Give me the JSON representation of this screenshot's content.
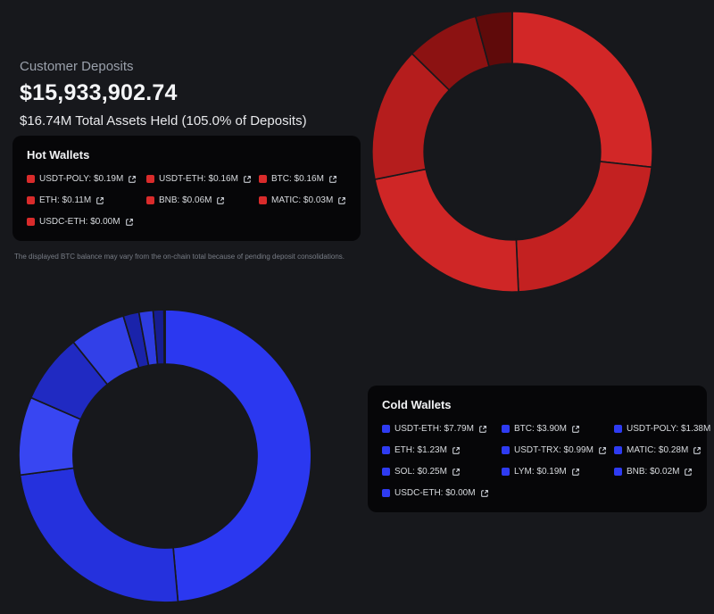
{
  "page": {
    "background": "#17181c",
    "panel_background": "#060608"
  },
  "header": {
    "label": "Customer Deposits",
    "amount": "$15,933,902.74",
    "total_assets": "$16.74M Total Assets Held (105.0% of Deposits)"
  },
  "disclaimer": "The displayed BTC balance may vary from the on-chain total because of pending deposit consolidations.",
  "hot_wallets": {
    "title": "Hot Wallets"
  },
  "cold_wallets": {
    "title": "Cold Wallets"
  },
  "chart_data": [
    {
      "type": "donut",
      "name": "hot",
      "title": "Hot Wallets",
      "unit": "USD millions",
      "value_prefix": "$",
      "value_suffix": "M",
      "legend_color": "#d92b2b",
      "labels": [
        "USDT-POLY",
        "USDT-ETH",
        "BTC",
        "ETH",
        "BNB",
        "MATIC",
        "USDC-ETH"
      ],
      "values": [
        0.19,
        0.16,
        0.16,
        0.11,
        0.06,
        0.03,
        0.0
      ],
      "colors": [
        "#d22727",
        "#c32121",
        "#cf2626",
        "#b51d1d",
        "#8c1212",
        "#5f0a0a",
        "#430707"
      ]
    },
    {
      "type": "donut",
      "name": "cold",
      "title": "Cold Wallets",
      "unit": "USD millions",
      "value_prefix": "$",
      "value_suffix": "M",
      "legend_color": "#2e3bf2",
      "labels": [
        "USDT-ETH",
        "BTC",
        "USDT-POLY",
        "ETH",
        "USDT-TRX",
        "MATIC",
        "SOL",
        "LYM",
        "BNB",
        "USDC-ETH"
      ],
      "values": [
        7.79,
        3.9,
        1.38,
        1.23,
        0.99,
        0.28,
        0.25,
        0.19,
        0.02,
        0.0
      ],
      "colors": [
        "#2b38f0",
        "#2531dd",
        "#3846f2",
        "#202ac2",
        "#3240e8",
        "#1a23aa",
        "#2e3ce0",
        "#161d90",
        "#0f1566",
        "#0a0f4a"
      ]
    }
  ]
}
